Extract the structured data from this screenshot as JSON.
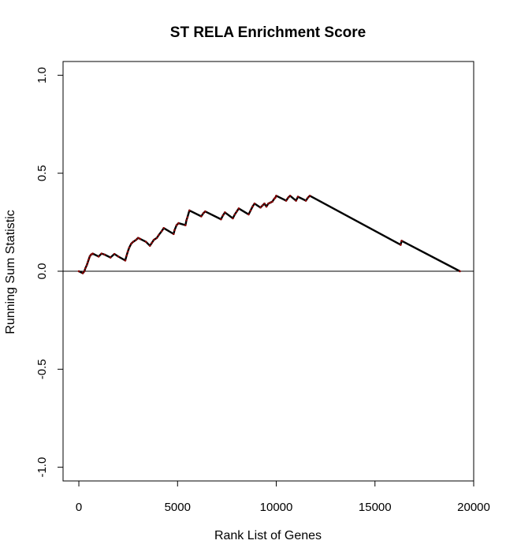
{
  "chart_data": {
    "type": "line",
    "title": "ST RELA Enrichment Score",
    "xlabel": "Rank List of Genes",
    "ylabel": "Running Sum Statistic",
    "xlim": [
      -800,
      20000
    ],
    "ylim": [
      -1.07,
      1.07
    ],
    "x_ticks": [
      0,
      5000,
      10000,
      15000,
      20000
    ],
    "x_tick_labels": [
      "0",
      "5000",
      "10000",
      "15000",
      "20000"
    ],
    "y_ticks": [
      -1.0,
      -0.5,
      0.0,
      0.5,
      1.0
    ],
    "y_tick_labels": [
      "-1.0",
      "-0.5",
      "0.0",
      "0.5",
      "1.0"
    ],
    "reference_line": 0,
    "grid": false,
    "colors": {
      "line": "#000000",
      "points": "#8b0000"
    },
    "series": [
      {
        "x": [
          0,
          200,
          280,
          330,
          400,
          450,
          500,
          550,
          620,
          700,
          1000,
          1150,
          1300,
          1600,
          1800,
          2000,
          2350,
          2420,
          2480,
          2550,
          2650,
          2750,
          2900,
          3000,
          3100,
          3400,
          3600,
          3700,
          3800,
          3950,
          4050,
          4200,
          4300,
          4800,
          4850,
          4950,
          5050,
          5400,
          5450,
          5500,
          5600,
          6200,
          6300,
          6400,
          7200,
          7300,
          7400,
          7800,
          7900,
          8000,
          8100,
          8600,
          8700,
          8800,
          8900,
          9200,
          9300,
          9400,
          9500,
          9600,
          9700,
          9800,
          9900,
          9950,
          10000,
          10500,
          10600,
          10700,
          11000,
          11100,
          11500,
          11600,
          11700,
          16300,
          16350,
          19300
        ],
        "y": [
          0.0,
          -0.01,
          0.0,
          0.015,
          0.03,
          0.045,
          0.06,
          0.075,
          0.085,
          0.09,
          0.075,
          0.09,
          0.085,
          0.07,
          0.088,
          0.075,
          0.055,
          0.08,
          0.1,
          0.12,
          0.14,
          0.15,
          0.16,
          0.17,
          0.165,
          0.15,
          0.13,
          0.145,
          0.16,
          0.17,
          0.185,
          0.205,
          0.22,
          0.19,
          0.21,
          0.235,
          0.245,
          0.235,
          0.26,
          0.275,
          0.31,
          0.28,
          0.295,
          0.305,
          0.265,
          0.285,
          0.3,
          0.27,
          0.29,
          0.305,
          0.32,
          0.29,
          0.31,
          0.33,
          0.345,
          0.325,
          0.335,
          0.345,
          0.33,
          0.345,
          0.35,
          0.355,
          0.37,
          0.375,
          0.385,
          0.36,
          0.375,
          0.385,
          0.36,
          0.38,
          0.36,
          0.375,
          0.385,
          0.135,
          0.155,
          0.0
        ]
      }
    ]
  }
}
